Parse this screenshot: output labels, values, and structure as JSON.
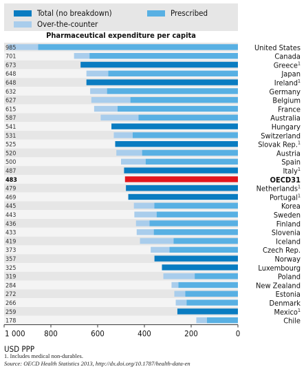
{
  "legend": [
    {
      "label": "Total (no breakdown)",
      "color": "#0a7cc1"
    },
    {
      "label": "Prescribed",
      "color": "#58b0e3"
    },
    {
      "label": "Over-the-counter",
      "color": "#a9cdec"
    }
  ],
  "footnote": "1.  Includes medical non-durables.",
  "source_label": "Source:",
  "source_text": "OECD Health Statistics 2013, http://dx.doi.org/10.1787/health-data-en",
  "chart_data": {
    "type": "bar",
    "orientation": "horizontal",
    "stacked": true,
    "title": "Pharmaceutical expenditure per capita",
    "xlabel": "USD PPP",
    "xlim": [
      1000,
      0
    ],
    "x_reversed": true,
    "x_ticks": [
      "1 000",
      "800",
      "600",
      "400",
      "200",
      "0"
    ],
    "x_tick_values": [
      1000,
      800,
      600,
      400,
      200,
      0
    ],
    "colors": {
      "total": "#0a7cc1",
      "prescribed": "#58b0e3",
      "otc": "#a9cdec",
      "highlight": "#e3161d",
      "stripe_dark": "#e6e6e6",
      "stripe_light": "#f4f4f4"
    },
    "categories": [
      {
        "country": "United States",
        "sup": "",
        "value": "985",
        "total": 985,
        "prescribed": 855,
        "otc": 130,
        "total_only": false
      },
      {
        "country": "Canada",
        "sup": "",
        "value": "701",
        "total": 701,
        "prescribed": 635,
        "otc": 66,
        "total_only": false
      },
      {
        "country": "Greece",
        "sup": "1",
        "value": "673",
        "total": 673,
        "prescribed": 673,
        "otc": 0,
        "total_only": true
      },
      {
        "country": "Japan",
        "sup": "",
        "value": "648",
        "total": 648,
        "prescribed": 555,
        "otc": 93,
        "total_only": false
      },
      {
        "country": "Ireland",
        "sup": "1",
        "value": "648",
        "total": 648,
        "prescribed": 648,
        "otc": 0,
        "total_only": true
      },
      {
        "country": "Germany",
        "sup": "",
        "value": "632",
        "total": 632,
        "prescribed": 560,
        "otc": 72,
        "total_only": false
      },
      {
        "country": "Belgium",
        "sup": "",
        "value": "627",
        "total": 627,
        "prescribed": 460,
        "otc": 167,
        "total_only": false
      },
      {
        "country": "France",
        "sup": "",
        "value": "615",
        "total": 615,
        "prescribed": 515,
        "otc": 100,
        "total_only": false
      },
      {
        "country": "Australia",
        "sup": "",
        "value": "587",
        "total": 587,
        "prescribed": 425,
        "otc": 162,
        "total_only": false
      },
      {
        "country": "Hungary",
        "sup": "",
        "value": "541",
        "total": 541,
        "prescribed": 541,
        "otc": 0,
        "total_only": true
      },
      {
        "country": "Switzerland",
        "sup": "",
        "value": "531",
        "total": 531,
        "prescribed": 450,
        "otc": 81,
        "total_only": false
      },
      {
        "country": "Slovak Rep.",
        "sup": "1",
        "value": "525",
        "total": 525,
        "prescribed": 525,
        "otc": 0,
        "total_only": true
      },
      {
        "country": "Austria",
        "sup": "",
        "value": "520",
        "total": 520,
        "prescribed": 410,
        "otc": 110,
        "total_only": false
      },
      {
        "country": "Spain",
        "sup": "",
        "value": "500",
        "total": 500,
        "prescribed": 395,
        "otc": 105,
        "total_only": false
      },
      {
        "country": "Italy",
        "sup": "1",
        "value": "487",
        "total": 487,
        "prescribed": 487,
        "otc": 0,
        "total_only": true
      },
      {
        "country": "OECD31",
        "sup": "",
        "value": "483",
        "total": 483,
        "prescribed": 483,
        "otc": 0,
        "total_only": true,
        "highlight": true
      },
      {
        "country": "Netherlands",
        "sup": "1",
        "value": "479",
        "total": 479,
        "prescribed": 479,
        "otc": 0,
        "total_only": true
      },
      {
        "country": "Portugal",
        "sup": "1",
        "value": "469",
        "total": 469,
        "prescribed": 469,
        "otc": 0,
        "total_only": true
      },
      {
        "country": "Korea",
        "sup": "",
        "value": "445",
        "total": 445,
        "prescribed": 358,
        "otc": 87,
        "total_only": false
      },
      {
        "country": "Sweden",
        "sup": "",
        "value": "443",
        "total": 443,
        "prescribed": 348,
        "otc": 95,
        "total_only": false
      },
      {
        "country": "Finland",
        "sup": "",
        "value": "436",
        "total": 436,
        "prescribed": 378,
        "otc": 58,
        "total_only": false
      },
      {
        "country": "Slovenia",
        "sup": "",
        "value": "433",
        "total": 433,
        "prescribed": 360,
        "otc": 73,
        "total_only": false
      },
      {
        "country": "Iceland",
        "sup": "",
        "value": "419",
        "total": 419,
        "prescribed": 275,
        "otc": 144,
        "total_only": false
      },
      {
        "country": "Czech Rep.",
        "sup": "",
        "value": "373",
        "total": 373,
        "prescribed": 293,
        "otc": 80,
        "total_only": false
      },
      {
        "country": "Norway",
        "sup": "",
        "value": "357",
        "total": 357,
        "prescribed": 357,
        "otc": 0,
        "total_only": true
      },
      {
        "country": "Luxembourg",
        "sup": "",
        "value": "325",
        "total": 325,
        "prescribed": 325,
        "otc": 0,
        "total_only": true
      },
      {
        "country": "Poland",
        "sup": "",
        "value": "319",
        "total": 319,
        "prescribed": 185,
        "otc": 134,
        "total_only": false
      },
      {
        "country": "New Zealand",
        "sup": "",
        "value": "284",
        "total": 284,
        "prescribed": 255,
        "otc": 29,
        "total_only": false
      },
      {
        "country": "Estonia",
        "sup": "",
        "value": "272",
        "total": 272,
        "prescribed": 225,
        "otc": 47,
        "total_only": false
      },
      {
        "country": "Denmark",
        "sup": "",
        "value": "266",
        "total": 266,
        "prescribed": 220,
        "otc": 46,
        "total_only": false
      },
      {
        "country": "Mexico",
        "sup": "1",
        "value": "259",
        "total": 259,
        "prescribed": 259,
        "otc": 0,
        "total_only": true
      },
      {
        "country": "Chile",
        "sup": "",
        "value": "178",
        "total": 178,
        "prescribed": 133,
        "otc": 45,
        "total_only": false
      }
    ]
  }
}
